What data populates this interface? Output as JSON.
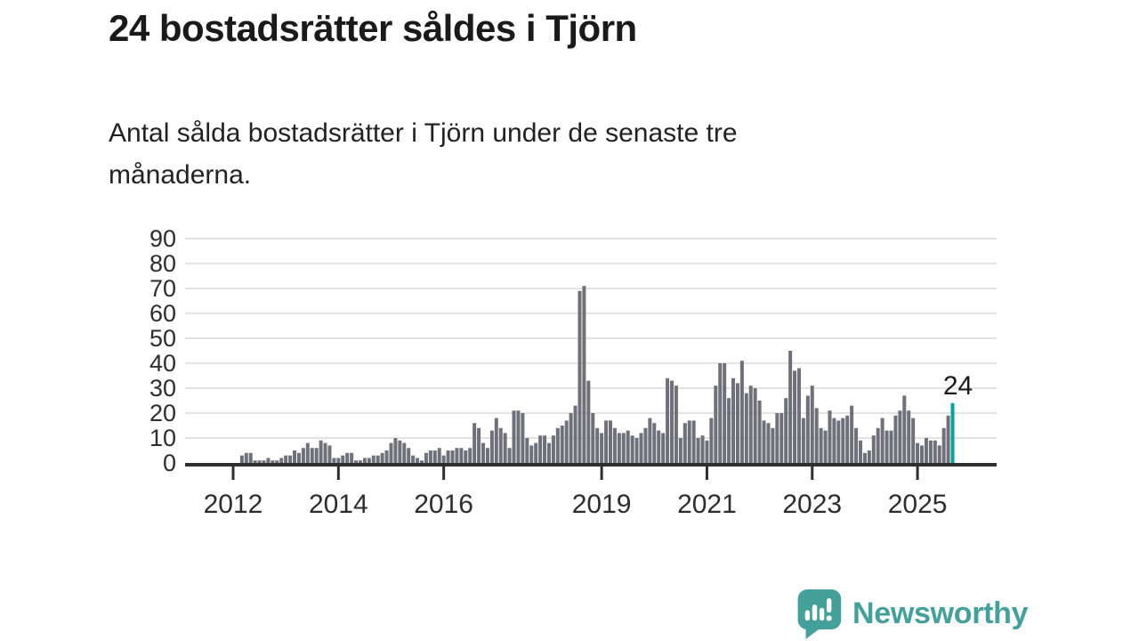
{
  "page": {
    "title": "24 bostadsrätter såldes i Tjörn",
    "subtitle": "Antal sålda bostadsrätter i Tjörn under de senaste tre månaderna."
  },
  "branding": {
    "wordmark": "Newsworthy"
  },
  "colors": {
    "bar": "#70707a",
    "highlight": "#00a39c",
    "brand_teal": "#44a09b",
    "title_text": "#1a1a1a",
    "axis_text": "#2d2d2d",
    "gridline": "#e3e3e3",
    "axis_line": "#2f2f2f"
  },
  "chart_data": {
    "type": "bar",
    "title": "24 bostadsrätter såldes i Tjörn",
    "subtitle": "Antal sålda bostadsrätter i Tjörn under de senaste tre månaderna.",
    "xlabel": "",
    "ylabel": "",
    "x_unit": "month",
    "x_start": "2012-01",
    "x_end": "2025-09",
    "ylim": [
      0,
      90
    ],
    "yticks": [
      0,
      10,
      20,
      30,
      40,
      50,
      60,
      70,
      80,
      90
    ],
    "xtick_years": [
      2012,
      2014,
      2016,
      2019,
      2021,
      2023,
      2025
    ],
    "grid": true,
    "legend": false,
    "highlight_last_bar": true,
    "last_value_label": "24",
    "values": [
      0,
      0,
      3,
      4,
      4,
      1,
      1,
      1,
      2,
      1,
      1,
      2,
      3,
      3,
      5,
      4,
      6,
      8,
      6,
      6,
      9,
      8,
      7,
      2,
      2,
      3,
      4,
      4,
      1,
      1,
      2,
      2,
      3,
      3,
      4,
      5,
      8,
      10,
      9,
      8,
      6,
      3,
      2,
      1,
      4,
      5,
      5,
      6,
      3,
      5,
      5,
      6,
      6,
      5,
      6,
      16,
      14,
      8,
      6,
      13,
      18,
      14,
      12,
      6,
      21,
      21,
      20,
      10,
      7,
      8,
      11,
      11,
      8,
      11,
      14,
      15,
      17,
      20,
      23,
      69,
      71,
      33,
      20,
      14,
      12,
      17,
      17,
      14,
      12,
      12,
      13,
      11,
      10,
      12,
      14,
      18,
      16,
      13,
      12,
      34,
      33,
      31,
      10,
      16,
      17,
      17,
      10,
      11,
      9,
      18,
      31,
      40,
      40,
      26,
      34,
      32,
      41,
      28,
      31,
      30,
      25,
      17,
      16,
      14,
      20,
      20,
      26,
      45,
      37,
      38,
      18,
      27,
      31,
      22,
      14,
      13,
      21,
      18,
      17,
      18,
      19,
      23,
      14,
      9,
      4,
      5,
      11,
      14,
      18,
      13,
      13,
      19,
      21,
      27,
      21,
      18,
      8,
      7,
      10,
      9,
      9,
      7,
      14,
      19,
      24
    ]
  }
}
